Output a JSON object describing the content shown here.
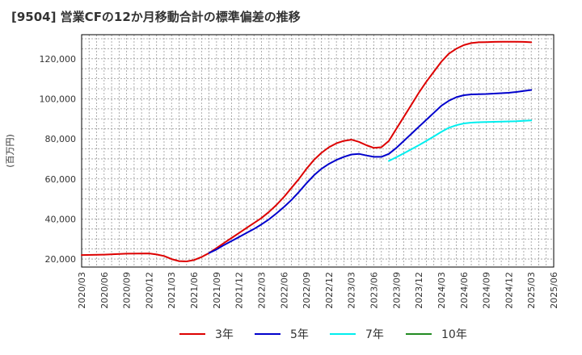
{
  "chart_data": {
    "type": "line",
    "title": "[9504]  営業CFの12か月移動合計の標準偏差の推移",
    "xlabel": "",
    "ylabel": "(百万円)",
    "ylim": [
      16000,
      132000
    ],
    "y_ticks": [
      20000,
      40000,
      60000,
      80000,
      100000,
      120000
    ],
    "y_tick_labels": [
      "20,000",
      "40,000",
      "60,000",
      "80,000",
      "100,000",
      "120,000"
    ],
    "x_ticks": [
      "2020/03",
      "2020/06",
      "2020/09",
      "2020/12",
      "2021/03",
      "2021/06",
      "2021/09",
      "2021/12",
      "2022/03",
      "2022/06",
      "2022/09",
      "2022/12",
      "2023/03",
      "2023/06",
      "2023/09",
      "2023/12",
      "2024/03",
      "2024/06",
      "2024/09",
      "2024/12",
      "2025/03",
      "2025/06"
    ],
    "grid": true,
    "legend_position": "bottom",
    "series": [
      {
        "name": "3年",
        "color": "#dd0000",
        "x": [
          "2020/03",
          "2020/06",
          "2020/09",
          "2020/12",
          "2021/01",
          "2021/02",
          "2021/03",
          "2021/04",
          "2021/05",
          "2021/06",
          "2021/07",
          "2021/08",
          "2021/09",
          "2021/10",
          "2021/11",
          "2021/12",
          "2022/01",
          "2022/02",
          "2022/03",
          "2022/04",
          "2022/05",
          "2022/06",
          "2022/07",
          "2022/08",
          "2022/09",
          "2022/10",
          "2022/11",
          "2022/12",
          "2023/01",
          "2023/02",
          "2023/03",
          "2023/04",
          "2023/05",
          "2023/06",
          "2023/07",
          "2023/08",
          "2023/09",
          "2023/10",
          "2023/11",
          "2023/12",
          "2024/01",
          "2024/02",
          "2024/03",
          "2024/04",
          "2024/05",
          "2024/06",
          "2024/07",
          "2024/08",
          "2024/09",
          "2024/10",
          "2024/11",
          "2024/12",
          "2025/01",
          "2025/02",
          "2025/03"
        ],
        "values": [
          22000,
          22200,
          22700,
          22800,
          22300,
          21500,
          20000,
          19000,
          18800,
          19500,
          21000,
          23000,
          25500,
          28000,
          30500,
          33000,
          35500,
          38000,
          40500,
          43500,
          47000,
          51000,
          55500,
          60000,
          65000,
          69500,
          73000,
          75800,
          77800,
          79000,
          79600,
          78500,
          76800,
          75500,
          75800,
          79000,
          85000,
          91000,
          97000,
          103000,
          108500,
          113500,
          118500,
          122500,
          125000,
          126800,
          127800,
          128200,
          128300,
          128400,
          128500,
          128500,
          128500,
          128400,
          128200
        ]
      },
      {
        "name": "5年",
        "color": "#0000cc",
        "x": [
          "2021/08",
          "2021/09",
          "2021/10",
          "2021/11",
          "2021/12",
          "2022/01",
          "2022/02",
          "2022/03",
          "2022/04",
          "2022/05",
          "2022/06",
          "2022/07",
          "2022/08",
          "2022/09",
          "2022/10",
          "2022/11",
          "2022/12",
          "2023/01",
          "2023/02",
          "2023/03",
          "2023/04",
          "2023/05",
          "2023/06",
          "2023/07",
          "2023/08",
          "2023/09",
          "2023/10",
          "2023/11",
          "2023/12",
          "2024/01",
          "2024/02",
          "2024/03",
          "2024/04",
          "2024/05",
          "2024/06",
          "2024/07",
          "2024/08",
          "2024/09",
          "2024/10",
          "2024/11",
          "2024/12",
          "2025/01",
          "2025/02",
          "2025/03"
        ],
        "values": [
          23000,
          24800,
          27000,
          29000,
          31000,
          33000,
          35000,
          37300,
          39800,
          42800,
          46000,
          49500,
          53500,
          57800,
          61800,
          65000,
          67500,
          69500,
          71000,
          72200,
          72500,
          71700,
          71000,
          71000,
          72500,
          75500,
          79000,
          82500,
          86000,
          89500,
          93000,
          96500,
          99000,
          100800,
          101800,
          102200,
          102300,
          102400,
          102600,
          102800,
          103000,
          103400,
          103900,
          104400
        ]
      },
      {
        "name": "7年",
        "color": "#00eeee",
        "x": [
          "2023/08",
          "2023/09",
          "2023/10",
          "2023/11",
          "2023/12",
          "2024/01",
          "2024/02",
          "2024/03",
          "2024/04",
          "2024/05",
          "2024/06",
          "2024/07",
          "2024/08",
          "2024/09",
          "2024/10",
          "2024/11",
          "2024/12",
          "2025/01",
          "2025/02",
          "2025/03"
        ],
        "values": [
          69000,
          70800,
          72800,
          74800,
          76800,
          79000,
          81200,
          83500,
          85500,
          86800,
          87700,
          88100,
          88300,
          88400,
          88500,
          88600,
          88700,
          88800,
          89000,
          89200
        ]
      },
      {
        "name": "10年",
        "color": "#228b22",
        "x": [],
        "values": []
      }
    ]
  }
}
